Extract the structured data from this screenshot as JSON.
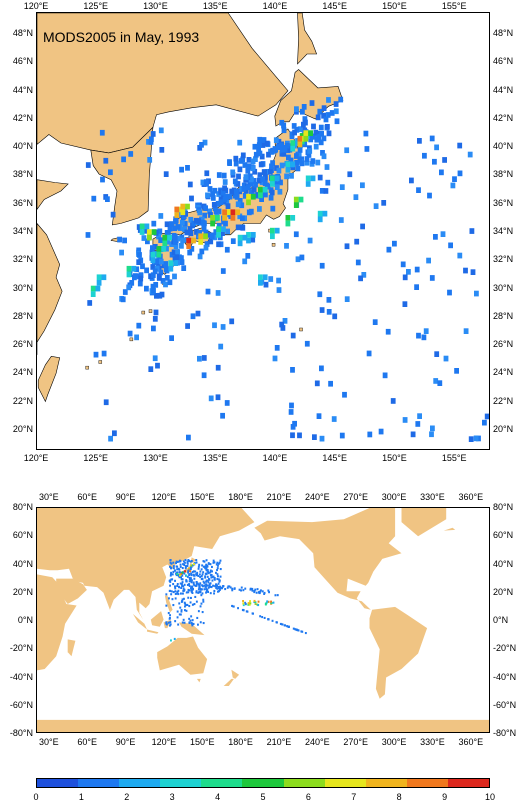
{
  "top_map": {
    "title": "MODS2005 in May, 1993",
    "lon_labels": [
      "120°E",
      "125°E",
      "130°E",
      "135°E",
      "140°E",
      "145°E",
      "150°E",
      "155°E"
    ],
    "lat_labels": [
      "48°N",
      "46°N",
      "44°N",
      "42°N",
      "40°N",
      "38°N",
      "36°N",
      "34°N",
      "32°N",
      "30°N",
      "28°N",
      "26°N",
      "24°N",
      "22°N",
      "20°N"
    ]
  },
  "bottom_map": {
    "lon_labels": [
      "30°E",
      "60°E",
      "90°E",
      "120°E",
      "150°E",
      "180°E",
      "210°E",
      "240°E",
      "270°E",
      "300°E",
      "330°E",
      "360°E"
    ],
    "lat_labels": [
      "80°N",
      "60°N",
      "40°N",
      "20°N",
      "0°N",
      "-20°N",
      "-40°N",
      "-60°N",
      "-80°N"
    ]
  },
  "colorbar": {
    "labels": [
      "0",
      "1",
      "2",
      "3",
      "4",
      "5",
      "6",
      "7",
      "8",
      "9",
      "10"
    ],
    "colors": [
      "#1e50dc",
      "#1e78f0",
      "#1eaaf0",
      "#1ed2d2",
      "#1edc8c",
      "#1ec83c",
      "#8cdc1e",
      "#e6e61e",
      "#f0b41e",
      "#f0781e",
      "#dc281e"
    ]
  },
  "styles": {
    "land_color": "#f0c483",
    "ocean_color": "#ffffff",
    "obs_color": "#1e78f0"
  }
}
